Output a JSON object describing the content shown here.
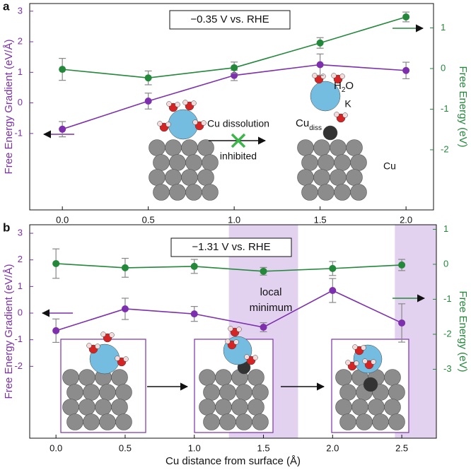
{
  "chart_data": [
    {
      "type": "line",
      "panel": "a",
      "title": "−0.35 V vs. RHE",
      "ylabel": "Free Energy Gradient (eV/Å)",
      "y2label": "Free Energy (eV)",
      "x": [
        0,
        0.5,
        1,
        1.5,
        2
      ],
      "xlim": [
        -0.19,
        2.16
      ],
      "xticks": [
        {
          "value": 0,
          "label": "0.0"
        },
        {
          "value": 0.5,
          "label": "0.5"
        },
        {
          "value": 1,
          "label": "1.0"
        },
        {
          "value": 1.5,
          "label": "1.5"
        },
        {
          "value": 2,
          "label": "2.0"
        }
      ],
      "ylim": [
        -3.5,
        3.25
      ],
      "yticks": [
        -1,
        0,
        1,
        2,
        3
      ],
      "y2lim": [
        -3.48,
        1.6
      ],
      "y2ticks": [
        -2,
        -1,
        0,
        1
      ],
      "series": [
        {
          "name": "Free Energy Gradient",
          "color": "#7d2fae",
          "values": [
            -0.86,
            0.06,
            0.9,
            1.25,
            1.06
          ],
          "errors": [
            0.25,
            0.26,
            0.17,
            0.35,
            0.27
          ]
        },
        {
          "name": "Free Energy",
          "color": "#23883a",
          "axis": "y2",
          "values": [
            -0.02,
            -0.23,
            0.02,
            0.63,
            1.27
          ],
          "errors": [
            0.27,
            0.17,
            0.14,
            0.13,
            0.12
          ]
        }
      ],
      "annotations": [
        "Cu dissolution",
        "inhibited",
        "K",
        "Cu"
      ],
      "h2o": [
        "H",
        "2",
        "O"
      ],
      "cu_diss": [
        "Cu",
        "diss"
      ]
    },
    {
      "type": "line",
      "panel": "b",
      "title": "−1.31 V vs. RHE",
      "xlabel": "Cu distance from surface (Å)",
      "ylabel": "Free Energy Gradient (eV/Å)",
      "y2label": "Free Energy (eV)",
      "x": [
        0,
        0.5,
        1,
        1.5,
        2,
        2.5
      ],
      "xlim": [
        -0.19,
        2.75
      ],
      "xticks": [
        {
          "value": 0,
          "label": "0.0"
        },
        {
          "value": 0.5,
          "label": "0.5"
        },
        {
          "value": 1,
          "label": "1.0"
        },
        {
          "value": 1.5,
          "label": "1.5"
        },
        {
          "value": 2,
          "label": "2.0"
        },
        {
          "value": 2.5,
          "label": "2.5"
        }
      ],
      "ylim": [
        -4.7,
        3.32
      ],
      "yticks": [
        -2,
        -1,
        0,
        1,
        2,
        3
      ],
      "y2lim": [
        -4.97,
        1.13
      ],
      "y2ticks": [
        -3,
        -2,
        -1,
        0,
        1
      ],
      "shaded_regions": [
        [
          1.25,
          1.75
        ],
        [
          2.45,
          2.75
        ]
      ],
      "shade_color": "#e2d2f0",
      "series": [
        {
          "name": "Free Energy Gradient",
          "color": "#7d2fae",
          "values": [
            -0.66,
            0.16,
            -0.03,
            -0.53,
            0.85,
            -0.37
          ],
          "errors": [
            0.44,
            0.4,
            0.28,
            0.17,
            0.45,
            0.72
          ]
        },
        {
          "name": "Free Energy",
          "color": "#23883a",
          "axis": "y2",
          "values": [
            0.02,
            -0.1,
            -0.06,
            -0.2,
            -0.12,
            -0.02
          ],
          "errors": [
            0.42,
            0.27,
            0.2,
            0.11,
            0.2,
            0.16
          ]
        }
      ],
      "annotations": [
        "local",
        "minimum"
      ]
    }
  ]
}
